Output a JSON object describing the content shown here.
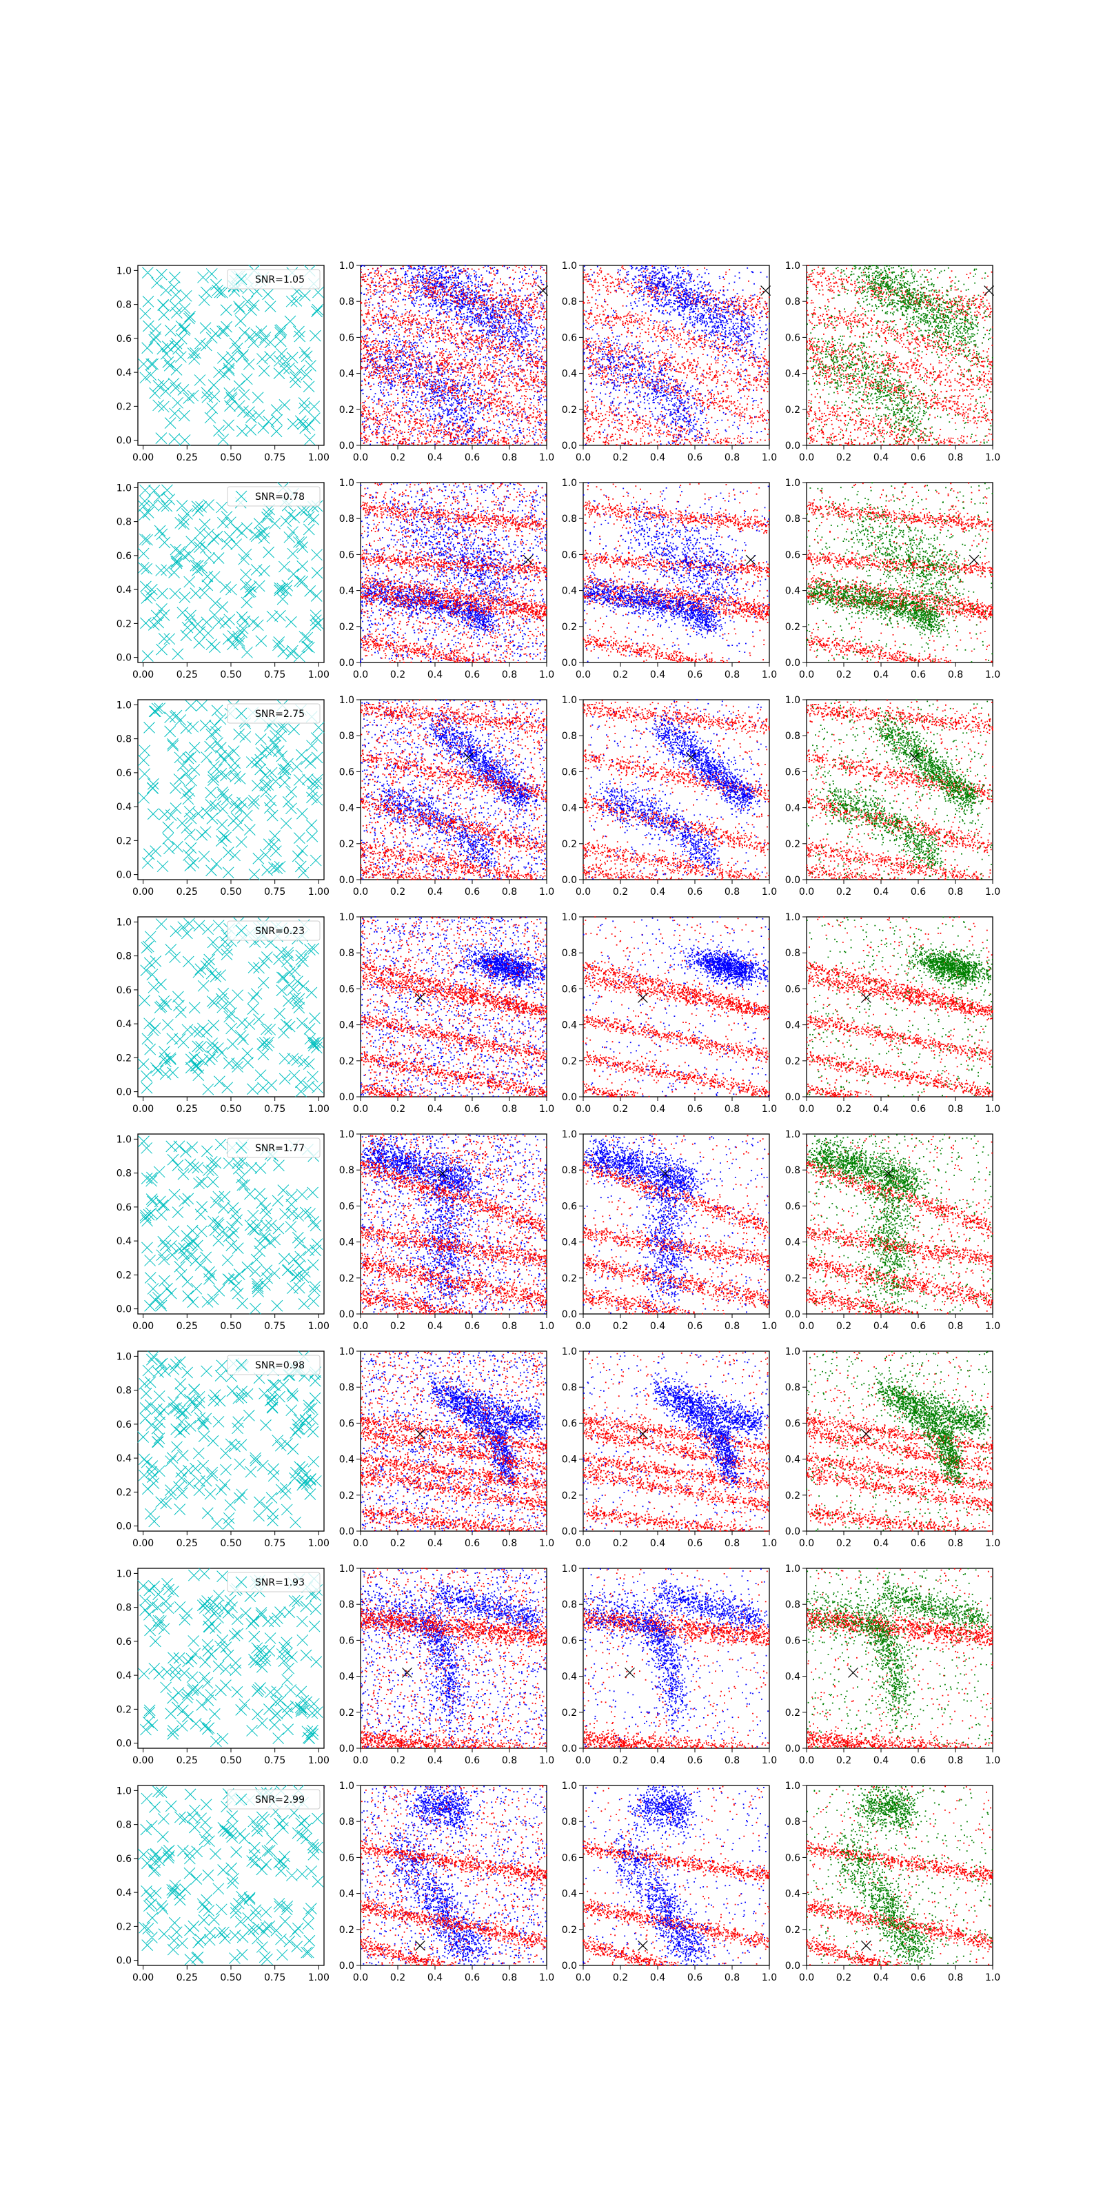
{
  "figure": {
    "rows": 8,
    "columns": 4,
    "background": "#ffffff",
    "colors": {
      "scatter_x": "#00bfbf",
      "red": "#ff0000",
      "blue": "#0000ff",
      "green": "#008000",
      "marker": "#000000",
      "axes": "#000000"
    }
  },
  "chart_data": {
    "type": "scatter",
    "layout": "grid of 8 rows x 4 panels",
    "panel_descriptions": [
      "col 1: uniform random points (cyan x markers) with SNR legend",
      "col 2: dense red and blue dot clouds along downward-sloping streaks, black x marker",
      "col 3: red streaks with a blue cluster, black x marker",
      "col 4: red streaks with a green cluster, black x marker"
    ],
    "col1_axis": {
      "xlim": [
        -0.03,
        1.03
      ],
      "ylim": [
        -0.03,
        1.03
      ],
      "xticks": [
        "0.00",
        "0.25",
        "0.50",
        "0.75",
        "1.00"
      ],
      "yticks": [
        "0.0",
        "0.2",
        "0.4",
        "0.6",
        "0.8",
        "1.0"
      ],
      "points_per_panel": 200
    },
    "dense_axis": {
      "xlim": [
        0.0,
        1.0
      ],
      "ylim": [
        0.0,
        1.0
      ],
      "xticks": [
        "0.0",
        "0.2",
        "0.4",
        "0.6",
        "0.8",
        "1.0"
      ],
      "yticks": [
        "0.0",
        "0.2",
        "0.4",
        "0.6",
        "0.8",
        "1.0"
      ]
    },
    "rows": [
      {
        "snr_label": "SNR=1.05",
        "target": [
          0.98,
          0.86
        ],
        "streaks": [
          [
            0.93,
            0.18
          ],
          [
            0.55,
            0.22
          ],
          [
            0.2,
            0.25
          ],
          [
            0.05,
            0.2
          ],
          [
            0.75,
            0.28
          ],
          [
            0.45,
            0.3
          ]
        ],
        "streak_width": 0.035,
        "cluster": {
          "type": "line",
          "points": [
            [
              0.3,
              0.95
            ],
            [
              0.6,
              0.8
            ],
            [
              0.9,
              0.6
            ]
          ],
          "width": 0.08
        },
        "cluster2": {
          "type": "line",
          "points": [
            [
              0.05,
              0.5
            ],
            [
              0.4,
              0.35
            ],
            [
              0.6,
              0.1
            ]
          ],
          "width": 0.09
        },
        "noise": 0.55,
        "col2_blue": 2000,
        "col2_red": 2200
      },
      {
        "snr_label": "SNR=0.78",
        "target": [
          0.9,
          0.57
        ],
        "streaks": [
          [
            0.37,
            0.1
          ],
          [
            0.58,
            0.07
          ],
          [
            0.12,
            0.18
          ],
          [
            0.86,
            0.1
          ],
          [
            0.45,
            0.15
          ]
        ],
        "streak_width": 0.02,
        "cluster": {
          "type": "line",
          "points": [
            [
              0.0,
              0.4
            ],
            [
              0.3,
              0.35
            ],
            [
              0.55,
              0.3
            ],
            [
              0.7,
              0.22
            ]
          ],
          "width": 0.04
        },
        "cluster2": {
          "type": "line",
          "points": [
            [
              0.3,
              0.75
            ],
            [
              0.6,
              0.55
            ],
            [
              0.8,
              0.4
            ]
          ],
          "width": 0.1
        },
        "noise": 0.5,
        "col2_blue": 2000,
        "col2_red": 2200
      },
      {
        "snr_label": "SNR=2.75",
        "target": [
          0.58,
          0.68
        ],
        "streaks": [
          [
            0.95,
            0.1
          ],
          [
            0.43,
            0.25
          ],
          [
            0.18,
            0.2
          ],
          [
            0.68,
            0.2
          ],
          [
            0.05,
            0.15
          ]
        ],
        "streak_width": 0.025,
        "cluster": {
          "type": "line",
          "points": [
            [
              0.4,
              0.85
            ],
            [
              0.6,
              0.7
            ],
            [
              0.75,
              0.55
            ],
            [
              0.9,
              0.45
            ]
          ],
          "width": 0.05
        },
        "cluster2": {
          "type": "line",
          "points": [
            [
              0.1,
              0.45
            ],
            [
              0.35,
              0.38
            ],
            [
              0.55,
              0.25
            ],
            [
              0.7,
              0.1
            ]
          ],
          "width": 0.05
        },
        "noise": 0.45,
        "col2_blue": 2000,
        "col2_red": 2200
      },
      {
        "snr_label": "SNR=0.23",
        "target": [
          0.32,
          0.55
        ],
        "streaks": [
          [
            0.66,
            0.2
          ],
          [
            0.73,
            0.25
          ],
          [
            0.43,
            0.2
          ],
          [
            0.22,
            0.2
          ],
          [
            0.05,
            0.2
          ]
        ],
        "streak_width": 0.018,
        "cluster": {
          "type": "blob",
          "center": [
            0.78,
            0.72
          ],
          "rx": 0.18,
          "ry": 0.04,
          "tilt": -0.18
        },
        "cluster2": null,
        "noise": 0.6,
        "col2_blue": 2000,
        "col2_red": 2200
      },
      {
        "snr_label": "SNR=1.77",
        "target": [
          0.44,
          0.78
        ],
        "streaks": [
          [
            0.83,
            0.35
          ],
          [
            0.45,
            0.15
          ],
          [
            0.28,
            0.2
          ],
          [
            0.1,
            0.2
          ]
        ],
        "streak_width": 0.025,
        "cluster": {
          "type": "line",
          "points": [
            [
              0.05,
              0.88
            ],
            [
              0.3,
              0.82
            ],
            [
              0.6,
              0.72
            ]
          ],
          "width": 0.05
        },
        "cluster2": {
          "type": "line",
          "points": [
            [
              0.45,
              0.75
            ],
            [
              0.45,
              0.4
            ],
            [
              0.45,
              0.15
            ]
          ],
          "width": 0.1
        },
        "noise": 0.55,
        "col2_blue": 2000,
        "col2_red": 2200
      },
      {
        "snr_label": "SNR=0.98",
        "target": [
          0.32,
          0.54
        ],
        "streaks": [
          [
            0.62,
            0.16
          ],
          [
            0.32,
            0.18
          ],
          [
            0.1,
            0.12
          ],
          [
            0.55,
            0.2
          ],
          [
            0.4,
            0.15
          ]
        ],
        "streak_width": 0.02,
        "cluster": {
          "type": "line",
          "points": [
            [
              0.4,
              0.8
            ],
            [
              0.6,
              0.65
            ],
            [
              0.75,
              0.5
            ],
            [
              0.8,
              0.3
            ]
          ],
          "width": 0.05
        },
        "cluster2": {
          "type": "line",
          "points": [
            [
              0.5,
              0.75
            ],
            [
              0.75,
              0.65
            ],
            [
              0.95,
              0.6
            ]
          ],
          "width": 0.04
        },
        "noise": 0.45,
        "col2_blue": 2000,
        "col2_red": 2200
      },
      {
        "snr_label": "SNR=1.93",
        "target": [
          0.25,
          0.42
        ],
        "streaks": [
          [
            0.72,
            0.1
          ],
          [
            0.05,
            0.1
          ]
        ],
        "streak_width": 0.03,
        "cluster": {
          "type": "line",
          "points": [
            [
              0.0,
              0.75
            ],
            [
              0.35,
              0.72
            ],
            [
              0.45,
              0.55
            ],
            [
              0.5,
              0.2
            ]
          ],
          "width": 0.07
        },
        "cluster2": {
          "type": "line",
          "points": [
            [
              0.4,
              0.85
            ],
            [
              0.7,
              0.78
            ],
            [
              0.95,
              0.72
            ]
          ],
          "width": 0.04
        },
        "noise": 0.4,
        "col2_blue": 1800,
        "col2_red": 2000
      },
      {
        "snr_label": "SNR=2.99",
        "target": [
          0.32,
          0.11
        ],
        "streaks": [
          [
            0.12,
            0.3
          ],
          [
            0.33,
            0.2
          ],
          [
            0.65,
            0.15
          ]
        ],
        "streak_width": 0.02,
        "cluster": {
          "type": "line",
          "points": [
            [
              0.2,
              0.65
            ],
            [
              0.35,
              0.45
            ],
            [
              0.45,
              0.3
            ],
            [
              0.5,
              0.15
            ],
            [
              0.65,
              0.08
            ]
          ],
          "width": 0.07
        },
        "cluster2": {
          "type": "line",
          "points": [
            [
              0.3,
              0.85
            ],
            [
              0.45,
              0.9
            ],
            [
              0.55,
              0.85
            ]
          ],
          "width": 0.06
        },
        "noise": 0.35,
        "col2_blue": 1800,
        "col2_red": 1800
      }
    ]
  }
}
